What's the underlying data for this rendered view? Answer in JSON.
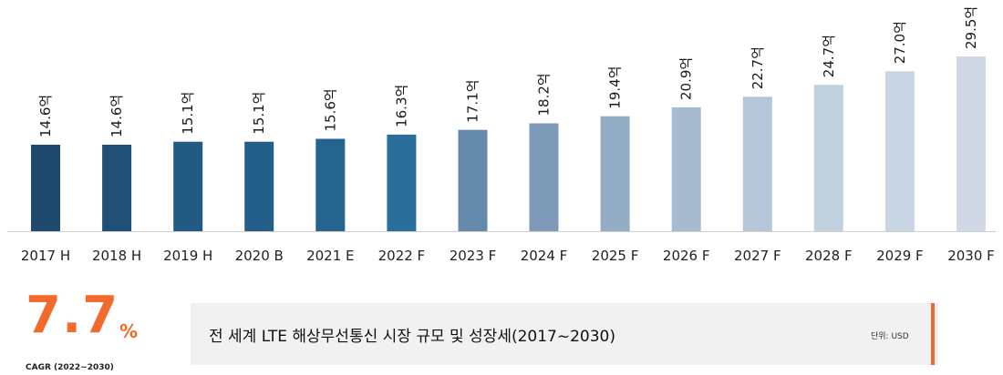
{
  "chart_data": {
    "type": "bar",
    "categories": [
      "2017 H",
      "2018 H",
      "2019 H",
      "2020 B",
      "2021 E",
      "2022 F",
      "2023 F",
      "2024 F",
      "2025 F",
      "2026 F",
      "2027 F",
      "2028 F",
      "2029 F",
      "2030 F"
    ],
    "values": [
      14.6,
      14.6,
      15.1,
      15.1,
      15.6,
      16.3,
      17.1,
      18.2,
      19.4,
      20.9,
      22.7,
      24.7,
      27.0,
      29.5
    ],
    "value_labels": [
      "14.6억",
      "14.6억",
      "15.1억",
      "15.1억",
      "15.6억",
      "16.3억",
      "17.1억",
      "18.2억",
      "19.4억",
      "20.9억",
      "22.7억",
      "24.7억",
      "27.0억",
      "29.5억"
    ],
    "bar_colors": [
      "#1f4a6e",
      "#1f4f75",
      "#215a82",
      "#235f89",
      "#25648f",
      "#2a6e9b",
      "#6489ab",
      "#7d9bb8",
      "#93adc5",
      "#a6bbd0",
      "#b5c6d8",
      "#c1d0df",
      "#c8d5e2",
      "#ced9e5"
    ],
    "ylim": [
      0,
      29.5
    ],
    "grid": false,
    "legend": "none"
  },
  "cagr": {
    "value": "7.7",
    "unit": "%",
    "label": "CAGR (2022~2030)",
    "color": "#f26b2d"
  },
  "caption": {
    "title": "전 세계 LTE 해상무선통신 시장 규모 및 성장세(2017~2030)",
    "unit_text": "단위: USD",
    "accent_color": "#f26b2d"
  }
}
